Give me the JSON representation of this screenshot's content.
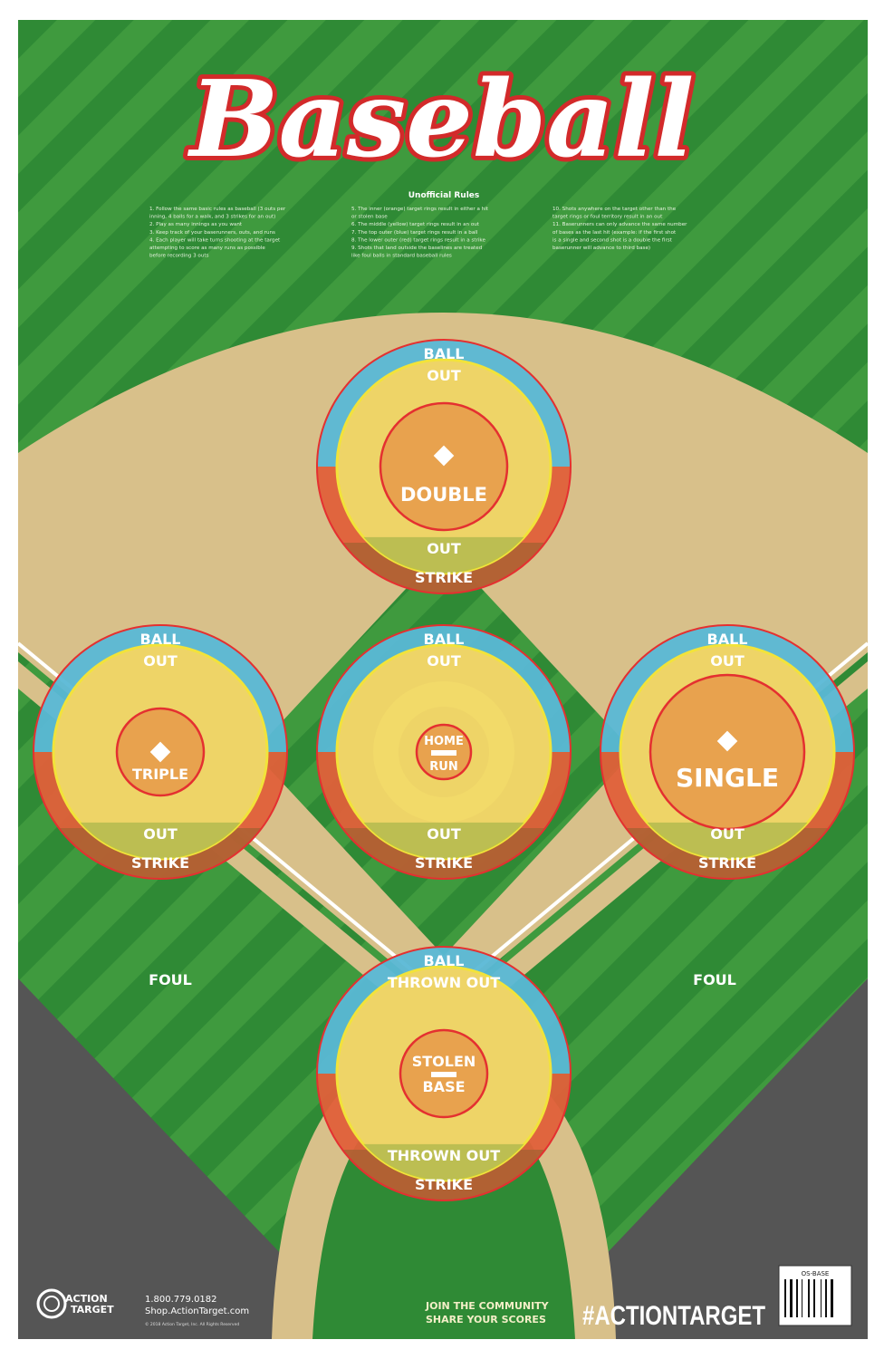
{
  "title": "Baseball",
  "rules": {
    "heading": "Unofficial Rules",
    "col1": [
      "1.  Follow the same basic rules as baseball (3 outs per",
      "     inning, 4 balls for a walk, and 3 strikes for an out)",
      "2.  Play as many innings as you want",
      "3.  Keep track of your baserunners, outs, and runs",
      "4.  Each player will take turns shooting at the target",
      "     attempting to score as many runs as possible",
      "     before recording 3 outs"
    ],
    "col2": [
      "5.  The inner (orange) target rings result in either a hit",
      "     or stolen base",
      "6.  The middle (yellow) target rings result in an out",
      "7.  The top outer (blue) target rings result in a ball",
      "8.  The lower outer (red) target rings result in a strike",
      "9.  Shots that land outside the baselines are treated",
      "     like foul balls in standard baseball rules"
    ],
    "col3": [
      "10. Shots anywhere on the target other than the",
      "      target rings or foul territory result in an out",
      "11. Baserunners can only advance the same number",
      "      of bases as the last hit (example: if the first shot",
      "      is a single and second shot is a double the first",
      "      baserunner will advance to third base)"
    ]
  },
  "targets": [
    {
      "id": "second-base",
      "ball": "BALL",
      "out_top": "OUT",
      "center": "DOUBLE",
      "out_bottom": "OUT",
      "strike": "STRIKE"
    },
    {
      "id": "third-base",
      "ball": "BALL",
      "out_top": "OUT",
      "center": "TRIPLE",
      "out_bottom": "OUT",
      "strike": "STRIKE"
    },
    {
      "id": "pitchers-mound",
      "ball": "BALL",
      "out_top": "OUT",
      "center_top": "HOME",
      "center_bottom": "RUN",
      "out_bottom": "OUT",
      "strike": "STRIKE"
    },
    {
      "id": "first-base",
      "ball": "BALL",
      "out_top": "OUT",
      "center": "SINGLE",
      "out_bottom": "OUT",
      "strike": "STRIKE"
    },
    {
      "id": "home-plate",
      "ball": "BALL",
      "out_top": "THROWN OUT",
      "center_top": "STOLEN",
      "center_bottom": "BASE",
      "out_bottom": "THROWN OUT",
      "strike": "STRIKE"
    }
  ],
  "foul_left": "FOUL",
  "foul_right": "FOUL",
  "footer": {
    "brand_line1": "ACTION",
    "brand_line2": "TARGET",
    "phone": "1.800.779.0182",
    "website": "Shop.ActionTarget.com",
    "copyright": "© 2018 Action Target, Inc. All Rights Reserved",
    "community_line1": "JOIN THE COMMUNITY",
    "community_line2": "SHARE YOUR SCORES",
    "hashtag": "#ACTIONTARGET",
    "product_code": "OS-BASE"
  },
  "colors": {
    "grass_dark": "#2f8a35",
    "grass_light": "#46a043",
    "dirt": "#d8c08a",
    "foul_gray": "#555555",
    "ring_blue": "#5ab8d6",
    "ring_red": "#e0603a",
    "ring_yellow": "#eed467",
    "center_orange": "#e8a24e"
  }
}
